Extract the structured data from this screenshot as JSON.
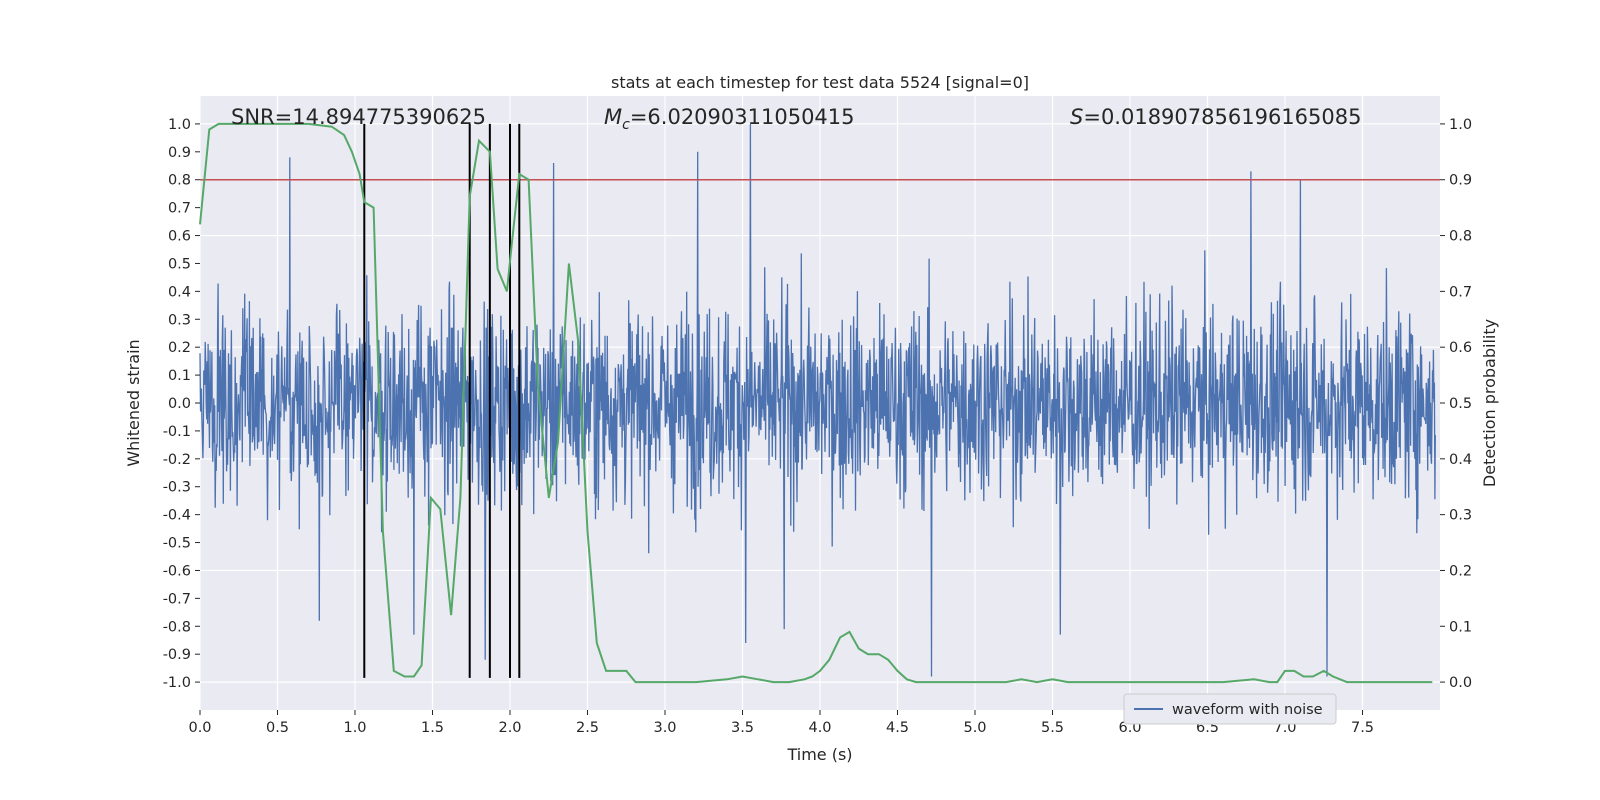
{
  "chart_data": {
    "type": "line",
    "title": "stats at each timestep for test data 5524 [signal=0]",
    "xlabel": "Time (s)",
    "ylabel": "Whitened strain",
    "ylabel_right": "Detection probability",
    "xlim": [
      0.0,
      8.0
    ],
    "ylim": [
      -1.1,
      1.1
    ],
    "ylim_right": [
      -0.05,
      1.05
    ],
    "x_ticks": [
      "0.0",
      "0.5",
      "1.0",
      "1.5",
      "2.0",
      "2.5",
      "3.0",
      "3.5",
      "4.0",
      "4.5",
      "5.0",
      "5.5",
      "6.0",
      "6.5",
      "7.0",
      "7.5"
    ],
    "y_ticks": [
      "1.0",
      "0.9",
      "0.8",
      "0.7",
      "0.6",
      "0.5",
      "0.4",
      "0.3",
      "0.2",
      "0.1",
      "0.0",
      "-0.1",
      "-0.2",
      "-0.3",
      "-0.4",
      "-0.5",
      "-0.6",
      "-0.7",
      "-0.8",
      "-0.9",
      "-1.0"
    ],
    "y_ticks_right": [
      "1.0",
      "0.9",
      "0.8",
      "0.7",
      "0.6",
      "0.5",
      "0.4",
      "0.3",
      "0.2",
      "0.1",
      "0.0"
    ],
    "annotations": {
      "snr": "SNR=14.894775390625",
      "mc_symbol": "M",
      "mc_sub": "c",
      "mc_value": "=6.02090311050415",
      "s_symbol": "S",
      "s_value": "=0.018907856196165085"
    },
    "threshold": {
      "value": 0.9,
      "axis": "right",
      "color": "#c44e52"
    },
    "vertical_lines": [
      1.06,
      1.74,
      1.87,
      2.0,
      2.06
    ],
    "waveform": {
      "name": "waveform with noise",
      "color": "#4c72b0",
      "samples": 16384,
      "envelope_typical": [
        -0.45,
        0.45
      ],
      "spikes": [
        {
          "x": 0.58,
          "y": 0.88
        },
        {
          "x": 3.55,
          "y": 1.0
        },
        {
          "x": 3.21,
          "y": 0.9
        },
        {
          "x": 2.28,
          "y": 0.86
        },
        {
          "x": 6.78,
          "y": 0.83
        },
        {
          "x": 7.1,
          "y": 0.8
        },
        {
          "x": 0.77,
          "y": -0.78
        },
        {
          "x": 1.38,
          "y": -0.83
        },
        {
          "x": 3.52,
          "y": -0.86
        },
        {
          "x": 4.72,
          "y": -0.98
        },
        {
          "x": 5.55,
          "y": -0.83
        },
        {
          "x": 7.27,
          "y": -0.98
        },
        {
          "x": 1.84,
          "y": -0.92
        },
        {
          "x": 3.77,
          "y": -0.81
        }
      ]
    },
    "series": [
      {
        "name": "detection probability",
        "color": "#55a868",
        "axis": "right",
        "x": [
          0.0,
          0.06,
          0.12,
          0.2,
          0.3,
          0.5,
          0.7,
          0.85,
          0.93,
          0.98,
          1.03,
          1.06,
          1.12,
          1.18,
          1.25,
          1.32,
          1.38,
          1.43,
          1.49,
          1.55,
          1.62,
          1.68,
          1.74,
          1.8,
          1.87,
          1.92,
          1.98,
          2.01,
          2.06,
          2.12,
          2.18,
          2.25,
          2.31,
          2.38,
          2.44,
          2.5,
          2.56,
          2.62,
          2.68,
          2.75,
          2.81,
          3.0,
          3.2,
          3.4,
          3.5,
          3.6,
          3.7,
          3.8,
          3.9,
          3.95,
          4.0,
          4.06,
          4.13,
          4.19,
          4.25,
          4.31,
          4.38,
          4.44,
          4.5,
          4.56,
          4.62,
          4.75,
          4.9,
          5.0,
          5.1,
          5.2,
          5.3,
          5.4,
          5.5,
          5.6,
          5.8,
          6.0,
          6.2,
          6.4,
          6.6,
          6.8,
          6.9,
          6.95,
          7.0,
          7.06,
          7.12,
          7.18,
          7.25,
          7.31,
          7.4,
          7.6,
          7.8,
          7.95
        ],
        "y": [
          0.82,
          0.99,
          1.0,
          1.0,
          1.0,
          1.0,
          1.0,
          0.995,
          0.98,
          0.95,
          0.91,
          0.86,
          0.85,
          0.27,
          0.02,
          0.01,
          0.01,
          0.03,
          0.33,
          0.31,
          0.12,
          0.33,
          0.87,
          0.97,
          0.95,
          0.74,
          0.7,
          0.78,
          0.91,
          0.9,
          0.53,
          0.33,
          0.43,
          0.75,
          0.61,
          0.27,
          0.07,
          0.02,
          0.02,
          0.02,
          0.0,
          0.0,
          0.0,
          0.005,
          0.01,
          0.005,
          0.0,
          0.0,
          0.005,
          0.01,
          0.02,
          0.04,
          0.08,
          0.09,
          0.06,
          0.05,
          0.05,
          0.04,
          0.02,
          0.005,
          0.0,
          0.0,
          0.0,
          0.0,
          0.0,
          0.0,
          0.005,
          0.0,
          0.005,
          0.0,
          0.0,
          0.0,
          0.0,
          0.0,
          0.0,
          0.005,
          0.0,
          0.0,
          0.02,
          0.02,
          0.01,
          0.01,
          0.02,
          0.01,
          0.0,
          0.0,
          0.0,
          0.0
        ]
      }
    ],
    "legend": {
      "position": "lower-right",
      "entries": [
        "waveform with noise"
      ]
    },
    "style": {
      "background": "#eaeaf2",
      "grid": true,
      "grid_color": "#ffffff"
    }
  }
}
